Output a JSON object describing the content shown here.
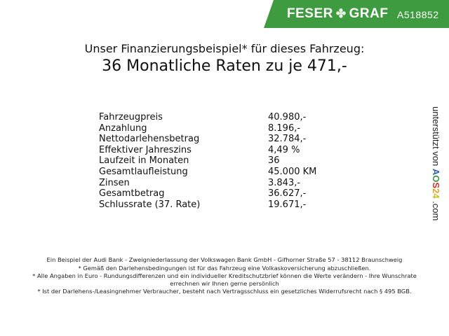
{
  "header": {
    "brand": "FESER",
    "brand2": "GRAF",
    "brand_icon": "clover-icon",
    "vehicle_code": "A518852",
    "banner_color": "#3f9b3f"
  },
  "title": {
    "line1": "Unser Finanzierungsbeispiel* für dieses Fahrzeug:",
    "line2": "36 Monatliche Raten zu je 471,-"
  },
  "rows": [
    {
      "label": "Fahrzeugpreis",
      "value": "40.980,-"
    },
    {
      "label": "Anzahlung",
      "value": "8.196,-"
    },
    {
      "label": "Nettodarlehensbetrag",
      "value": "32.784,-"
    },
    {
      "label": "Effektiver Jahreszins",
      "value": "4,49 %"
    },
    {
      "label": "Laufzeit in Monaten",
      "value": "36"
    },
    {
      "label": "Gesamtlaufleistung",
      "value": "45.000 KM"
    },
    {
      "label": "Zinsen",
      "value": "3.843,-"
    },
    {
      "label": "Gesamtbetrag",
      "value": "36.627,-"
    },
    {
      "label": "Schlussrate (37. Rate)",
      "value": "19.671,-"
    }
  ],
  "side": {
    "text": "unterstützt von",
    "logo": [
      "A",
      "O",
      "S",
      "2",
      "4"
    ],
    "logo_colors": [
      "#2a5db0",
      "#3c9a3c",
      "#d03030",
      "#e8a020",
      "#c8c020"
    ],
    "suffix": ".com"
  },
  "footer": [
    "Ein Beispiel der Audi Bank - Zweigniederlassung der Volkswagen Bank GmbH - Gifhorner Straße 57 - 38112 Braunschweig",
    "* Gemäß den Darlehensbedingungen ist für das Fahrzeug eine Volkaskoversicherung abzuschließen.",
    "* Alle Angaben in Euro - Rundungsdifferenzen und ein individueller Kreditschutzbrief können die Werte verändern - Ihre Wunschrate errechnen wir Ihnen gerne persönlich",
    "* Ist der Darlehens-/Leasingnehmer Verbraucher, besteht nach Vertragsschluss ein gesetzliches Widerrufsrecht nach § 495 BGB."
  ]
}
